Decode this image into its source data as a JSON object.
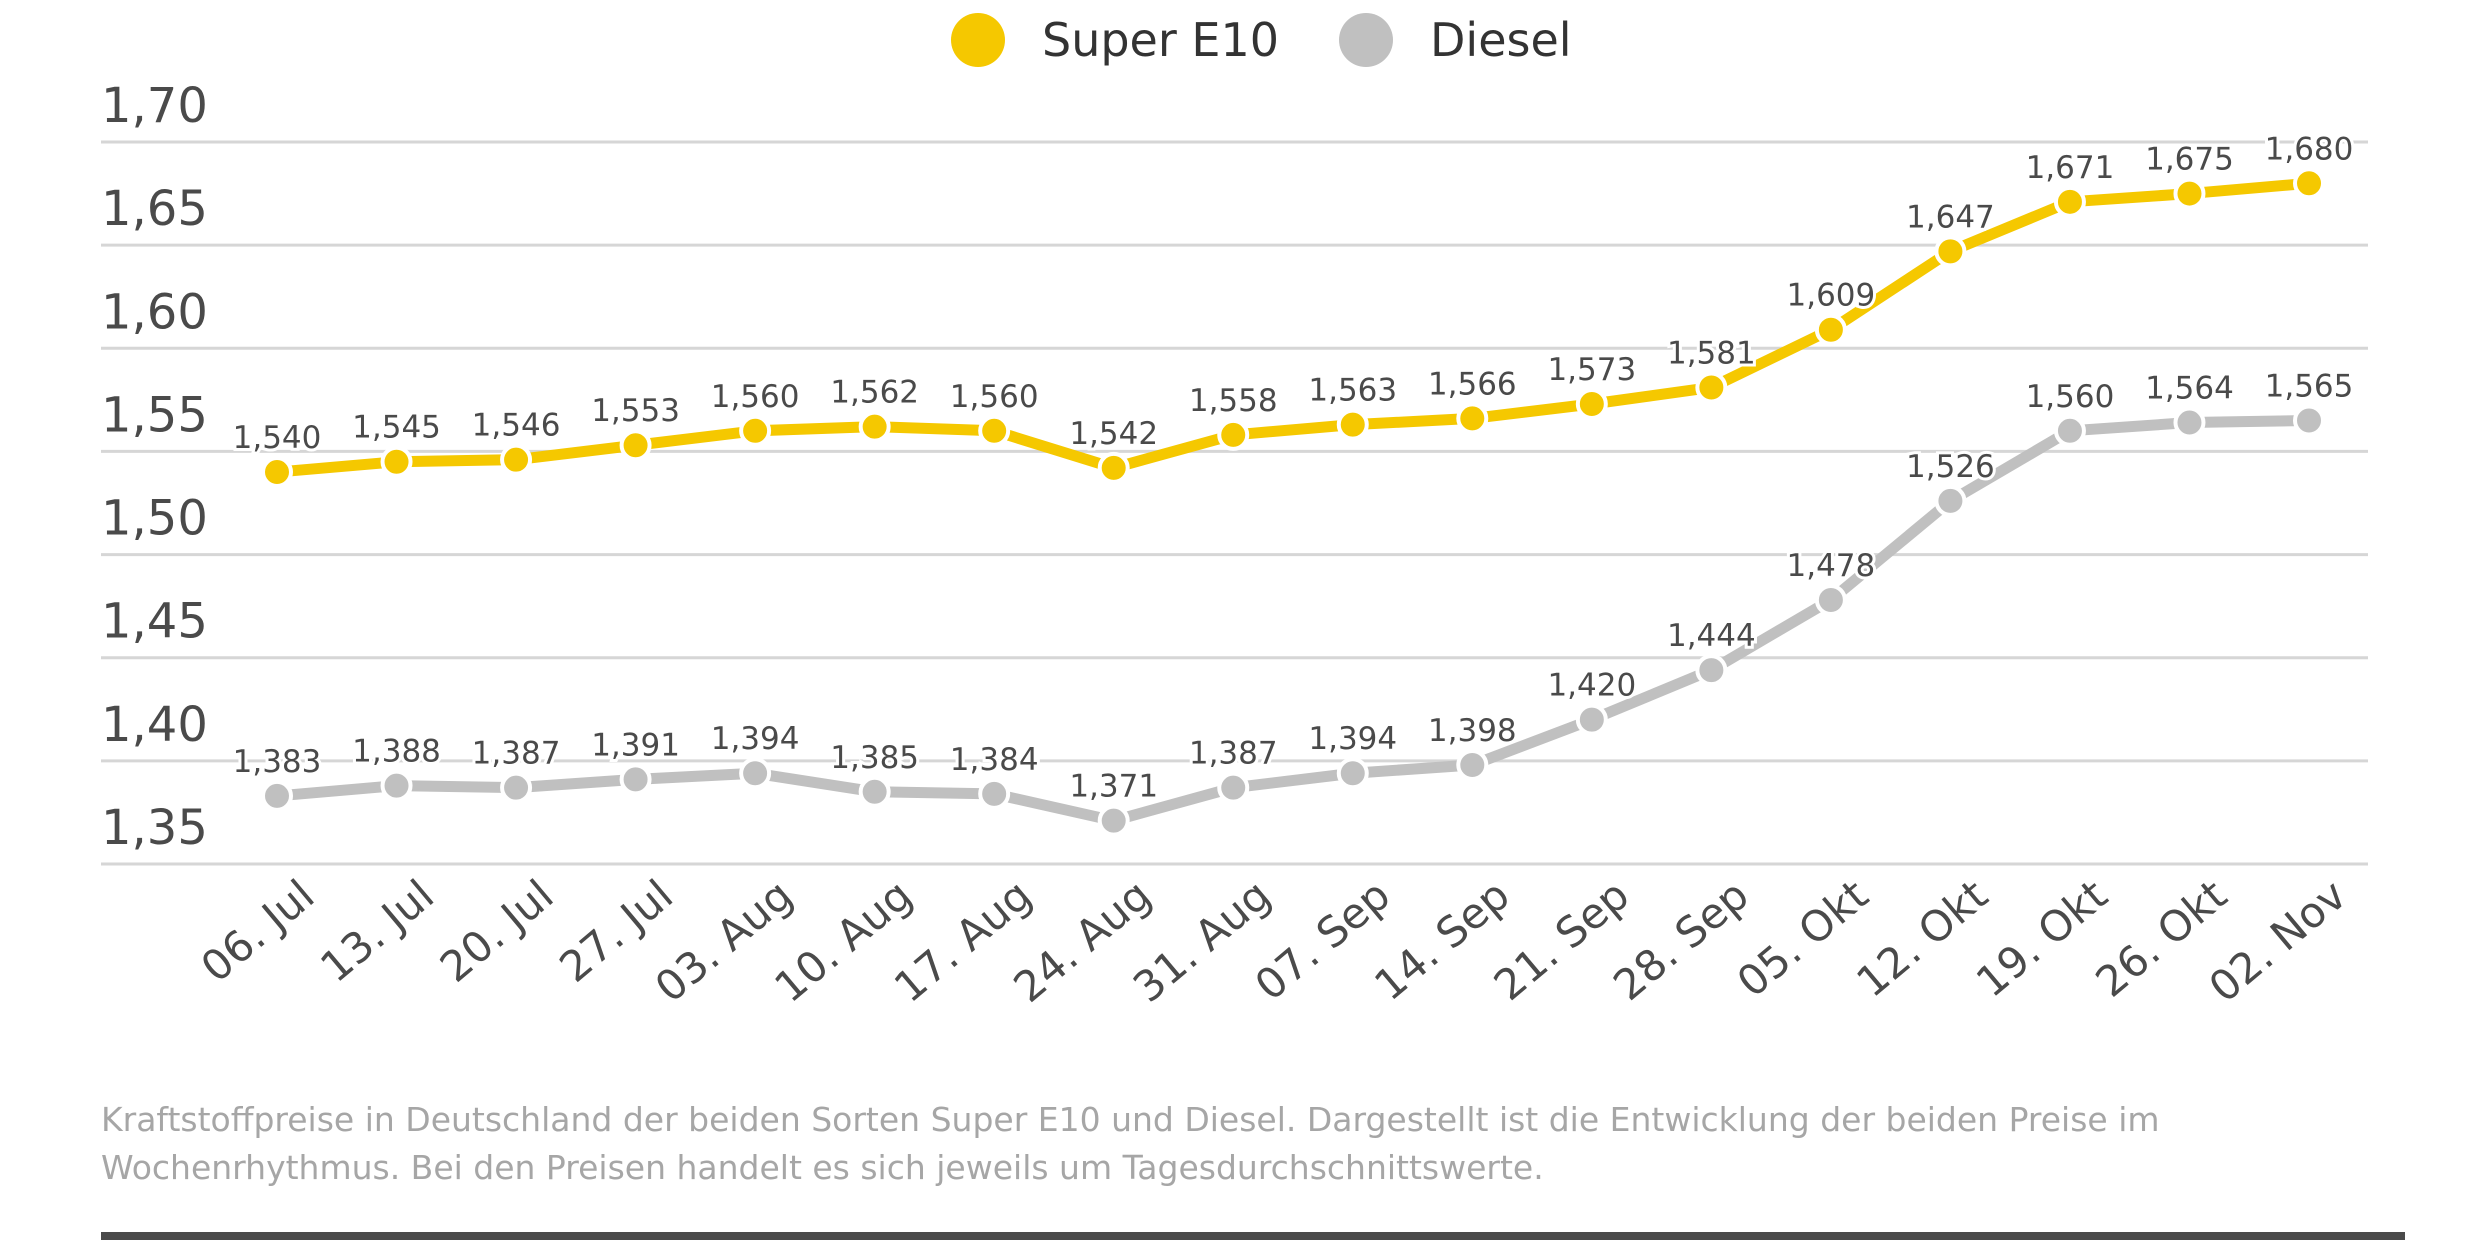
{
  "chart_data": {
    "type": "line",
    "title": "",
    "xlabel": "",
    "ylabel": "",
    "categories": [
      "06. Jul",
      "13. Jul",
      "20. Jul",
      "27. Jul",
      "03. Aug",
      "10. Aug",
      "17. Aug",
      "24. Aug",
      "31. Aug",
      "07. Sep",
      "14. Sep",
      "21. Sep",
      "28. Sep",
      "05. Okt",
      "12. Okt",
      "19. Okt",
      "26. Okt",
      "02. Nov"
    ],
    "series": [
      {
        "name": "Super E10",
        "color": "#f5c800",
        "values": [
          1.54,
          1.545,
          1.546,
          1.553,
          1.56,
          1.562,
          1.56,
          1.542,
          1.558,
          1.563,
          1.566,
          1.573,
          1.581,
          1.609,
          1.647,
          1.671,
          1.675,
          1.68
        ],
        "labels": [
          "1,540",
          "1,545",
          "1,546",
          "1,553",
          "1,560",
          "1,562",
          "1,560",
          "1,542",
          "1,558",
          "1,563",
          "1,566",
          "1,573",
          "1,581",
          "1,609",
          "1,647",
          "1,671",
          "1,675",
          "1,680"
        ]
      },
      {
        "name": "Diesel",
        "color": "#c0c0c0",
        "values": [
          1.383,
          1.388,
          1.387,
          1.391,
          1.394,
          1.385,
          1.384,
          1.371,
          1.387,
          1.394,
          1.398,
          1.42,
          1.444,
          1.478,
          1.526,
          1.56,
          1.564,
          1.565
        ],
        "labels": [
          "1,383",
          "1,388",
          "1,387",
          "1,391",
          "1,394",
          "1,385",
          "1,384",
          "1,371",
          "1,387",
          "1,394",
          "1,398",
          "1,420",
          "1,444",
          "1,478",
          "1,526",
          "1,560",
          "1,564",
          "1,565"
        ]
      }
    ],
    "ylim": [
      1.35,
      1.7
    ],
    "yticks": [
      1.35,
      1.4,
      1.45,
      1.5,
      1.55,
      1.6,
      1.65,
      1.7
    ],
    "ytick_labels": [
      "1,35",
      "1,40",
      "1,45",
      "1,50",
      "1,55",
      "1,60",
      "1,65",
      "1,70"
    ],
    "grid": true,
    "legend_position": "top-center"
  },
  "caption": "Kraftstoffpreise in Deutschland der beiden Sorten Super E10 und Diesel. Dargestellt ist die Entwicklung der beiden Preise im Wochenrhythmus. Bei den Preisen handelt es sich jeweils um Tagesdurchschnittswerte."
}
